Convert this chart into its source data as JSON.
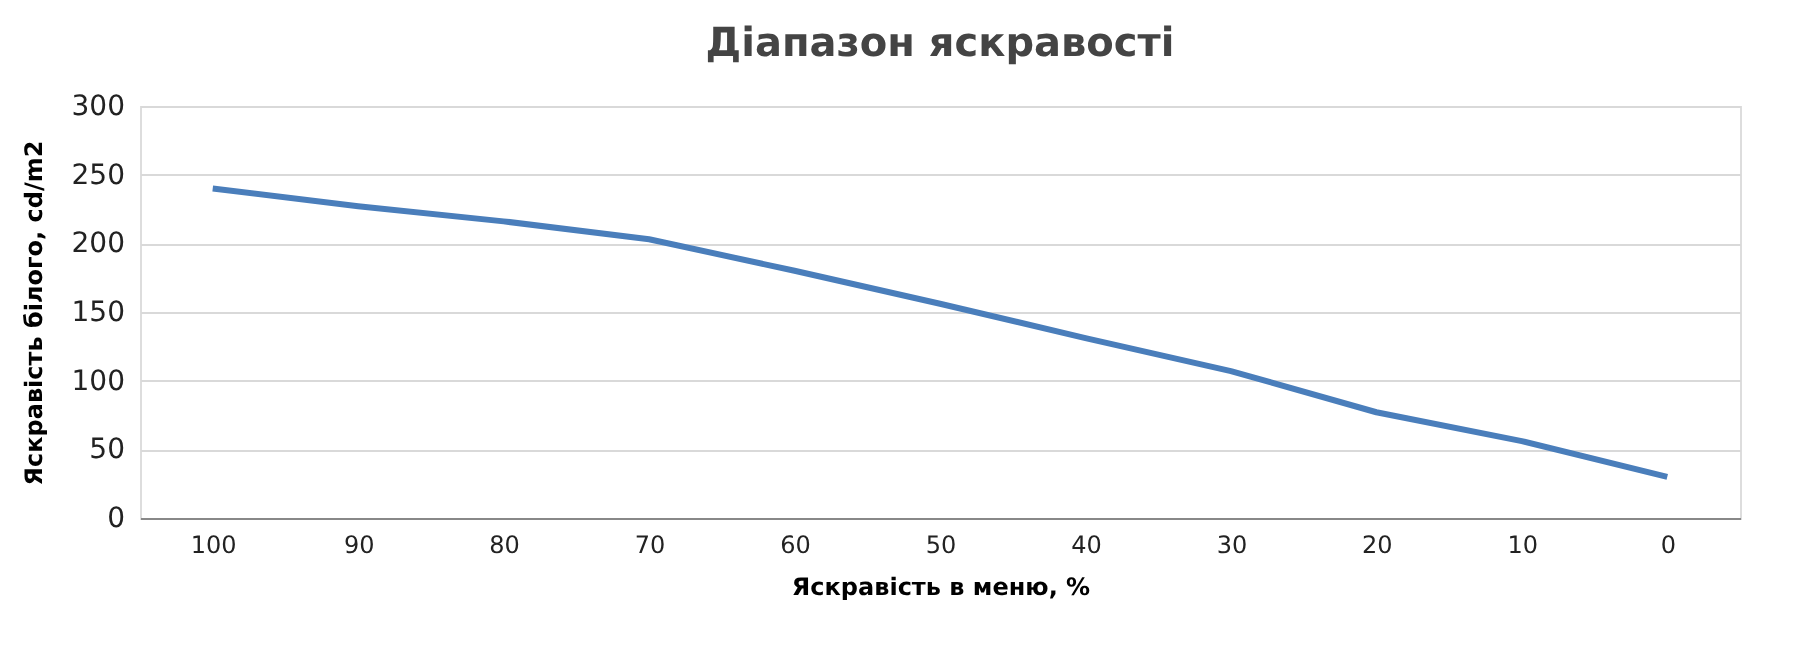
{
  "chart_data": {
    "type": "line",
    "title": "Діапазон яскравості",
    "xlabel": "Яскравість в меню, %",
    "ylabel": "Яскравість білого, cd/m2",
    "categories": [
      "100",
      "90",
      "80",
      "70",
      "60",
      "50",
      "40",
      "30",
      "20",
      "10",
      "0"
    ],
    "series": [
      {
        "color": "#4a7ebb",
        "values": [
          240,
          227,
          216,
          203,
          180,
          156,
          131,
          107,
          77,
          56,
          30
        ]
      }
    ],
    "ylim": [
      0,
      300
    ],
    "yticks": [
      0,
      50,
      100,
      150,
      200,
      250,
      300
    ],
    "grid": "y",
    "marker": "none",
    "line_style": "solid"
  }
}
